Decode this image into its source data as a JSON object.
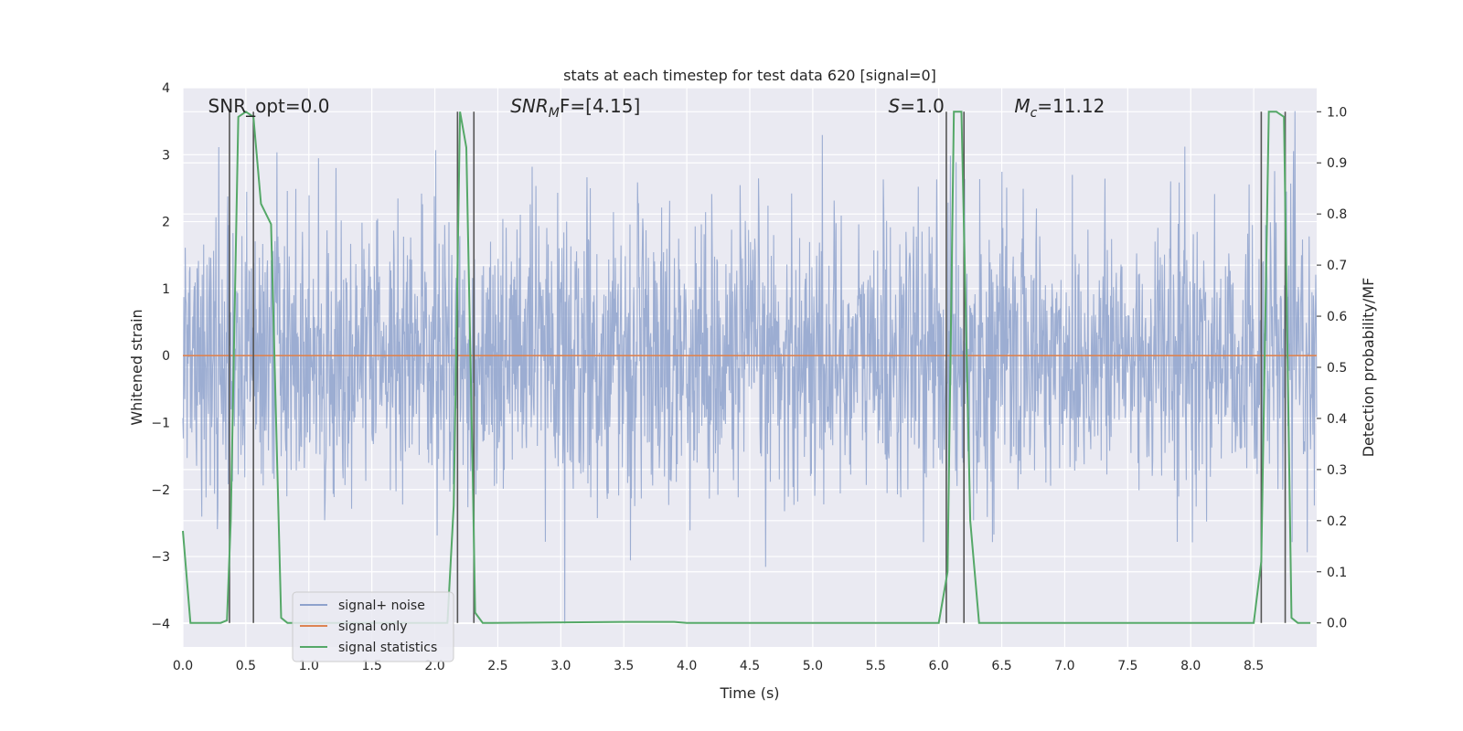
{
  "chart_data": {
    "type": "line",
    "title": "stats at each timestep for test data 620 [signal=0]",
    "xlabel": "Time (s)",
    "ylabel": "Whitened strain",
    "y2label": "Detection probability/MF",
    "xlim": [
      0.0,
      9.0
    ],
    "ylim": [
      -4.35,
      4.0
    ],
    "y2lim": [
      -0.047,
      1.047
    ],
    "xticks": [
      "0.0",
      "0.5",
      "1.0",
      "1.5",
      "2.0",
      "2.5",
      "3.0",
      "3.5",
      "4.0",
      "4.5",
      "5.0",
      "5.5",
      "6.0",
      "6.5",
      "7.0",
      "7.5",
      "8.0",
      "8.5"
    ],
    "yticks": [
      "4",
      "3",
      "2",
      "1",
      "0",
      "−1",
      "−2",
      "−3",
      "−4"
    ],
    "y2ticks": [
      "1.0",
      "0.9",
      "0.8",
      "0.7",
      "0.6",
      "0.5",
      "0.4",
      "0.3",
      "0.2",
      "0.1",
      "0.0"
    ],
    "grid": true,
    "legend_position": "lower-left",
    "annotations": [
      {
        "text": "SNR_opt=0.0",
        "x": 0.2
      },
      {
        "base": "SNR",
        "sub": "M",
        "rest": "F=[4.15]",
        "x": 2.6
      },
      {
        "base": "S",
        "sub": "",
        "rest": "=1.0",
        "x": 5.6
      },
      {
        "base": "M",
        "sub": "c",
        "rest": "=11.12",
        "x": 6.6
      }
    ],
    "series": [
      {
        "name": "signal+ noise",
        "color": "#8ea2cc",
        "kind": "noise",
        "sigma": 1.0,
        "y_range": [
          -4.0,
          3.65
        ]
      },
      {
        "name": "signal only",
        "color": "#dd8452",
        "kind": "constant",
        "value": 0.0
      },
      {
        "name": "signal statistics",
        "color": "#55a868",
        "axis": "y2",
        "x": [
          0.0,
          0.06,
          0.12,
          0.2,
          0.3,
          0.35,
          0.38,
          0.44,
          0.5,
          0.56,
          0.62,
          0.7,
          0.78,
          0.83,
          0.9,
          1.0,
          2.1,
          2.15,
          2.2,
          2.25,
          2.3,
          2.32,
          2.38,
          2.45,
          3.5,
          3.9,
          4.0,
          6.0,
          6.07,
          6.12,
          6.18,
          6.25,
          6.32,
          6.4,
          8.5,
          8.56,
          8.62,
          8.68,
          8.74,
          8.8,
          8.85,
          8.95
        ],
        "values": [
          0.18,
          0.0,
          0.0,
          0.0,
          0.0,
          0.005,
          0.2,
          0.99,
          1.0,
          0.99,
          0.82,
          0.78,
          0.01,
          0.0,
          0.0,
          0.0,
          0.0,
          0.23,
          1.0,
          0.93,
          0.3,
          0.02,
          0.0,
          0.0,
          0.002,
          0.002,
          0.0,
          0.0,
          0.1,
          1.0,
          1.0,
          0.2,
          0.0,
          0.0,
          0.0,
          0.12,
          1.0,
          1.0,
          0.99,
          0.01,
          0.0,
          0.0
        ]
      },
      {
        "name": "marker lines",
        "color": "#555555",
        "kind": "vlines",
        "x": [
          0.37,
          0.56,
          2.18,
          2.31,
          6.06,
          6.2,
          8.56,
          8.75
        ]
      }
    ],
    "legend": [
      {
        "label": "signal+ noise",
        "color": "#8ea2cc"
      },
      {
        "label": "signal only",
        "color": "#dd8452"
      },
      {
        "label": "signal statistics",
        "color": "#55a868"
      }
    ]
  }
}
